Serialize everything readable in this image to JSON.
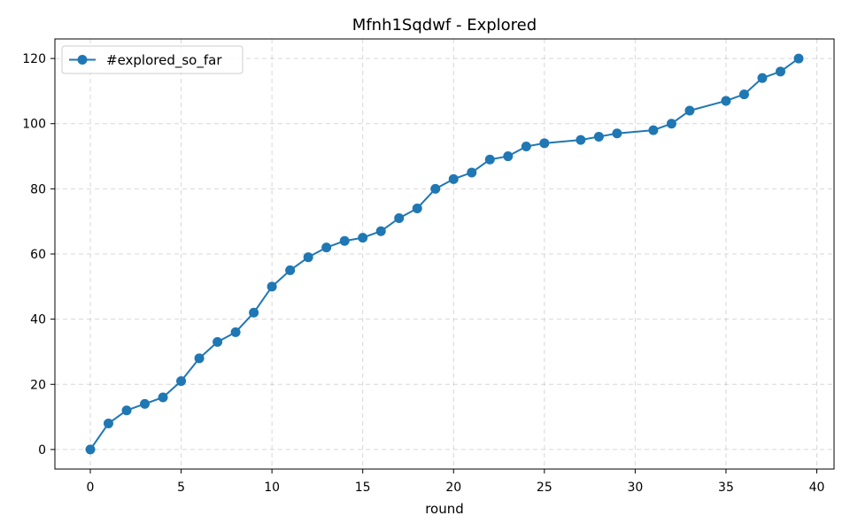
{
  "chart_data": {
    "type": "line",
    "title": "Mfnh1Sqdwf - Explored",
    "xlabel": "round",
    "ylabel": "",
    "xlim": [
      -1.95,
      40.95
    ],
    "ylim": [
      -6,
      126
    ],
    "xticks": [
      0,
      5,
      10,
      15,
      20,
      25,
      30,
      35,
      40
    ],
    "yticks": [
      0,
      20,
      40,
      60,
      80,
      100,
      120
    ],
    "grid": true,
    "legend_position": "top-left",
    "series": [
      {
        "name": "#explored_so_far",
        "color": "#1f77b4",
        "marker": "circle",
        "x": [
          0,
          1,
          2,
          3,
          4,
          5,
          6,
          7,
          8,
          9,
          10,
          11,
          12,
          13,
          14,
          15,
          16,
          17,
          18,
          19,
          20,
          21,
          22,
          23,
          24,
          25,
          27,
          28,
          29,
          31,
          32,
          33,
          35,
          36,
          37,
          38,
          39
        ],
        "y": [
          0,
          8,
          12,
          14,
          16,
          21,
          28,
          33,
          36,
          42,
          50,
          55,
          59,
          62,
          64,
          65,
          67,
          71,
          74,
          80,
          83,
          85,
          89,
          90,
          93,
          94,
          95,
          96,
          97,
          98,
          100,
          104,
          107,
          109,
          114,
          116,
          120
        ]
      }
    ]
  }
}
